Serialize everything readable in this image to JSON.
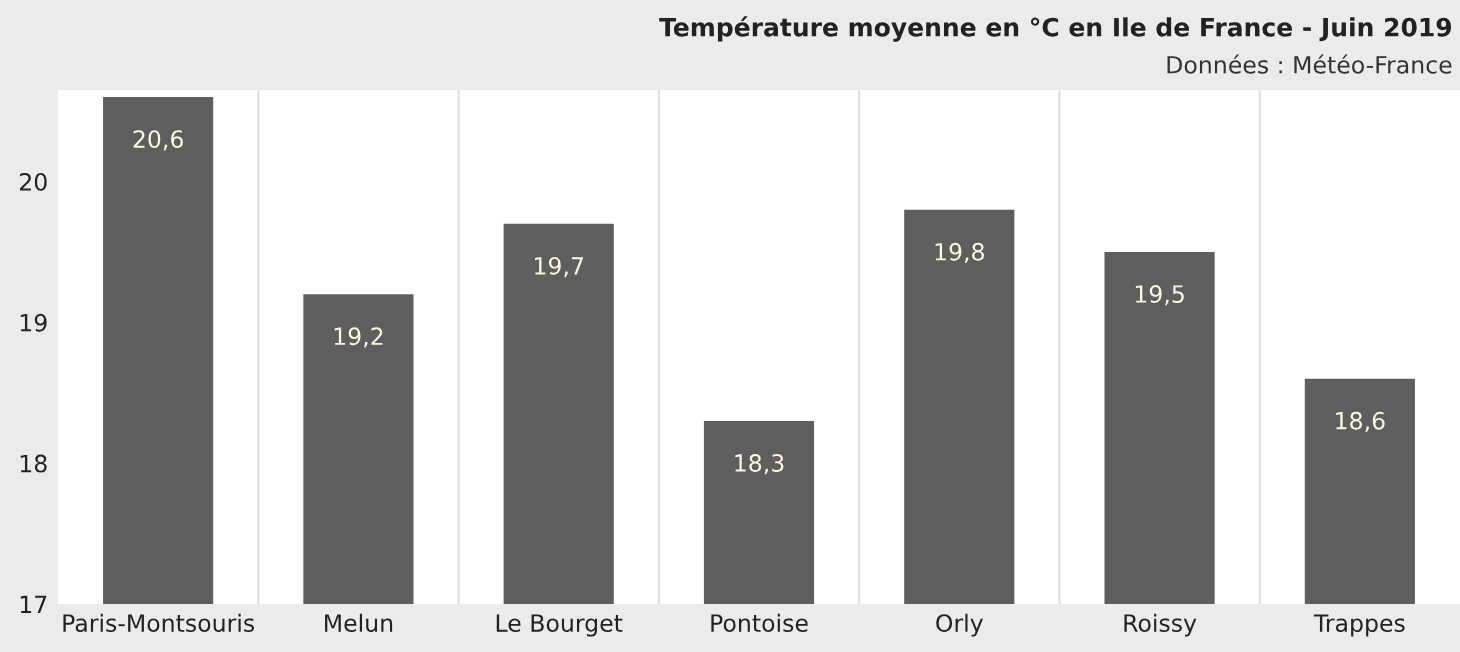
{
  "chart_data": {
    "type": "bar",
    "title": "Température moyenne en °C en Ile de France - Juin 2019",
    "subtitle": "Données : Météo-France",
    "categories": [
      "Paris-Montsouris",
      "Melun",
      "Le Bourget",
      "Pontoise",
      "Orly",
      "Roissy",
      "Trappes"
    ],
    "values": [
      20.6,
      19.2,
      19.7,
      18.3,
      19.8,
      19.5,
      18.6
    ],
    "value_labels": [
      "20,6",
      "19,2",
      "19,7",
      "18,3",
      "19,8",
      "19,5",
      "18,6"
    ],
    "color": "#5e5e5e",
    "ylim": [
      17,
      20.65
    ],
    "yticks": [
      17,
      18,
      19,
      20
    ],
    "grid": "x",
    "legend": false
  }
}
